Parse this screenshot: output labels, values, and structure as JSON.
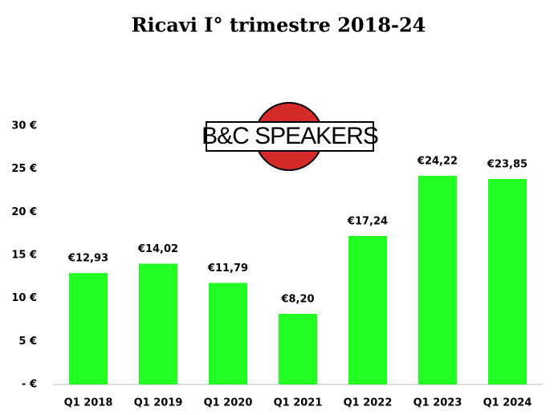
{
  "chart_data": {
    "type": "bar",
    "title": "Ricavi I° trimestre 2018-24",
    "logo": "B&C SPEAKERS",
    "categories": [
      "Q1 2018",
      "Q1 2019",
      "Q1 2020",
      "Q1 2021",
      "Q1 2022",
      "Q1 2023",
      "Q1 2024"
    ],
    "values": [
      12.93,
      14.02,
      11.79,
      8.2,
      17.24,
      24.22,
      23.85
    ],
    "value_labels": [
      "€12,93",
      "€14,02",
      "€11,79",
      "€8,20",
      "€17,24",
      "€24,22",
      "€23,85"
    ],
    "color": "#22ff22",
    "ylim": [
      0,
      30
    ],
    "yticks": [
      {
        "value": 0,
        "label": "- €"
      },
      {
        "value": 5,
        "label": "5 €"
      },
      {
        "value": 10,
        "label": "10 €"
      },
      {
        "value": 15,
        "label": "15 €"
      },
      {
        "value": 20,
        "label": "20 €"
      },
      {
        "value": 25,
        "label": "25 €"
      },
      {
        "value": 30,
        "label": "30 €"
      }
    ],
    "grid": false
  }
}
